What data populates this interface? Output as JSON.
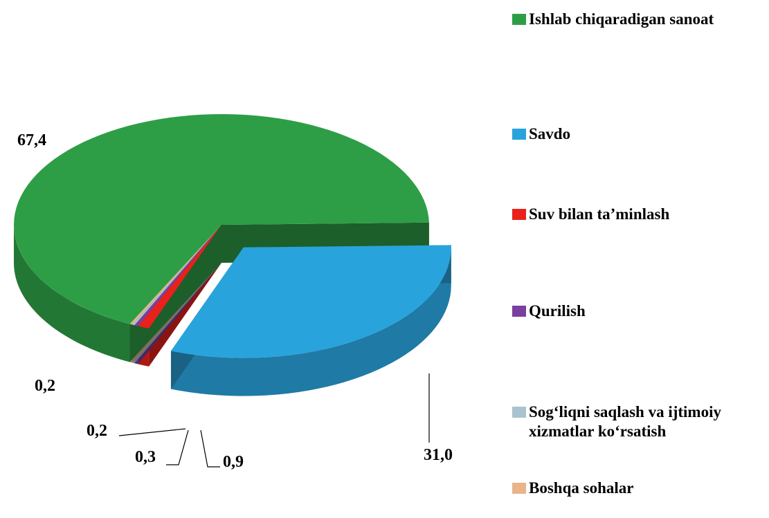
{
  "chart_data": {
    "type": "pie",
    "categories": [
      "Ishlab chiqaradigan sanoat",
      "Savdo",
      "Suv bilan ta’minlash",
      "Qurilish",
      "Sog‘liqni saqlash va ijtimoiy xizmatlar ko‘rsatish",
      "Boshqa sohalar"
    ],
    "values": [
      67.4,
      31.0,
      0.9,
      0.3,
      0.2,
      0.2
    ],
    "value_labels": [
      "67,4",
      "31,0",
      "0,9",
      "0,3",
      "0,2",
      "0,2"
    ],
    "colors": [
      "#2e9e46",
      "#29a3dc",
      "#e8211c",
      "#7b3fa0",
      "#a9c4cf",
      "#e8b48a"
    ]
  }
}
